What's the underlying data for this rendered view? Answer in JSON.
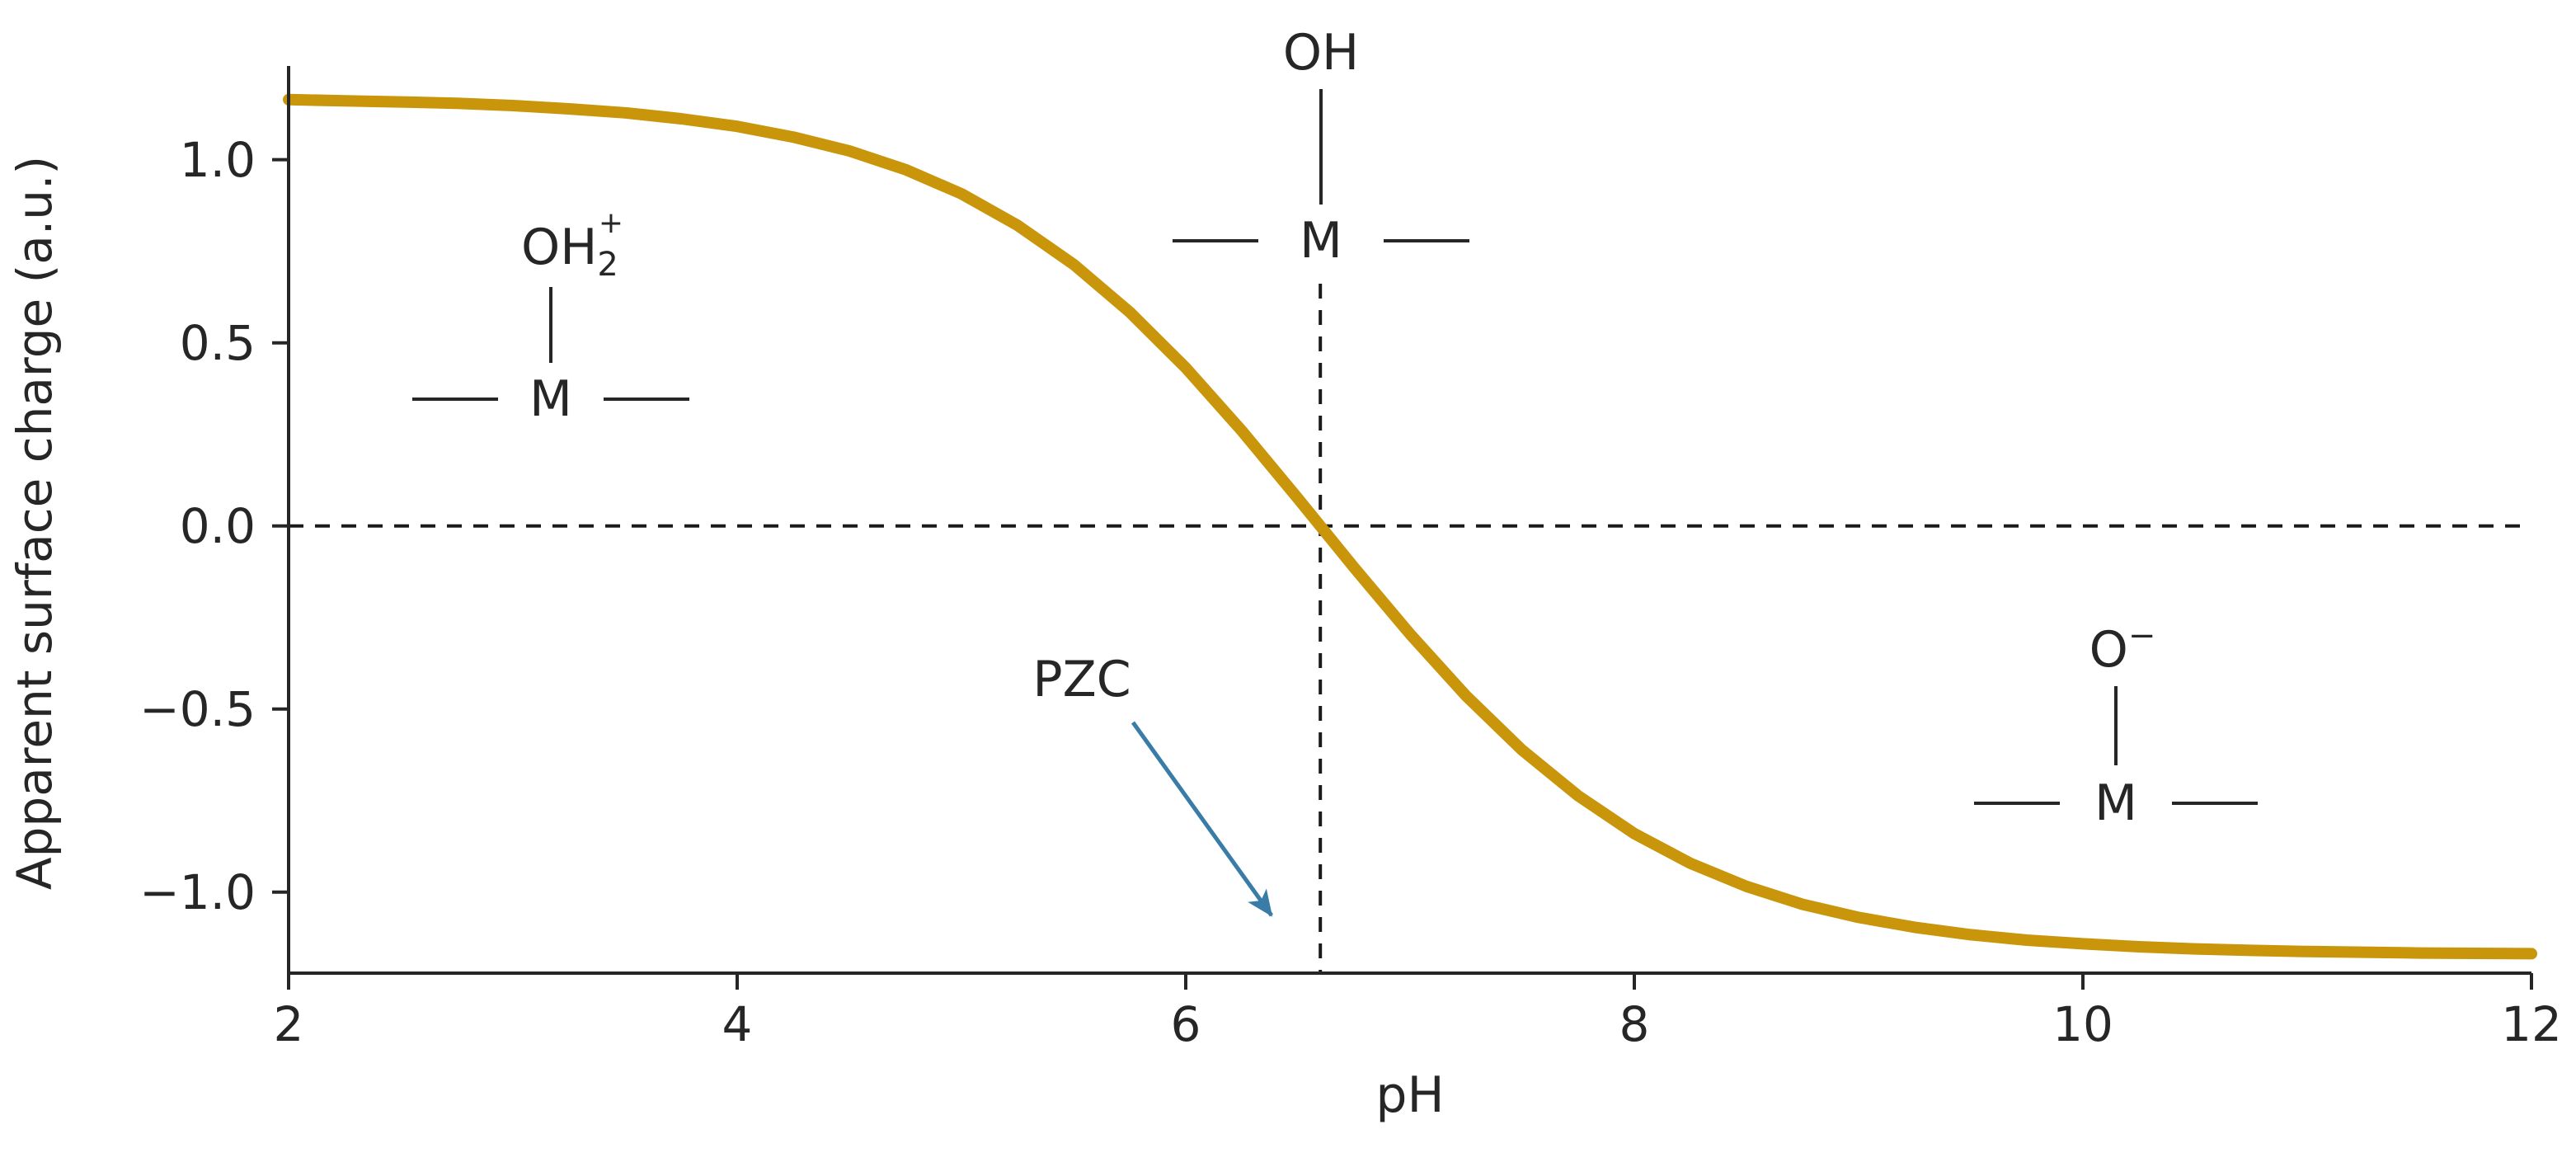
{
  "axes": {
    "xlabel": "pH",
    "ylabel": "Apparent surface charge (a.u.)",
    "xtick_labels": [
      "2",
      "4",
      "6",
      "8",
      "10",
      "12"
    ],
    "xtick_values": [
      2,
      4,
      6,
      8,
      10,
      12
    ],
    "ytick_labels": [
      "1.0",
      "0.5",
      "0.0",
      "−0.5",
      "−1.0"
    ],
    "ytick_values": [
      1.0,
      0.5,
      0.0,
      -0.5,
      -1.0
    ]
  },
  "annotations": {
    "pzc_label": "PZC",
    "oh2_group": {
      "main": "OH",
      "sub": "2",
      "sup": "+",
      "metal": "M"
    },
    "oh_group": {
      "main": "OH",
      "metal": "M"
    },
    "o_group": {
      "main": "O",
      "sup": "−",
      "metal": "M"
    }
  },
  "colors": {
    "curve": "#C8950B",
    "arrow": "#3A7CA8",
    "axis": "#262626",
    "dash": "#1a1a1a"
  },
  "chart_data": {
    "type": "line",
    "title": "",
    "xlabel": "pH",
    "ylabel": "Apparent surface charge (a.u.)",
    "xlim": [
      2,
      12
    ],
    "ylim": [
      -1.221,
      1.256
    ],
    "grid": false,
    "legend": "none",
    "pzc": 6.6,
    "zero_line": 0,
    "x": [
      2,
      2.25,
      2.5,
      2.75,
      3,
      3.25,
      3.5,
      3.75,
      4,
      4.25,
      4.5,
      4.75,
      5,
      5.25,
      5.5,
      5.75,
      6,
      6.25,
      6.5,
      6.75,
      7,
      7.25,
      7.5,
      7.75,
      8,
      8.25,
      8.5,
      8.75,
      9,
      9.25,
      9.5,
      9.75,
      10,
      10.25,
      10.5,
      10.75,
      11,
      11.25,
      11.5,
      11.75,
      12
    ],
    "y": [
      1.164,
      1.161,
      1.158,
      1.154,
      1.148,
      1.139,
      1.128,
      1.112,
      1.091,
      1.062,
      1.024,
      0.973,
      0.907,
      0.821,
      0.714,
      0.584,
      0.432,
      0.26,
      0.075,
      -0.113,
      -0.295,
      -0.464,
      -0.612,
      -0.737,
      -0.84,
      -0.921,
      -0.984,
      -1.033,
      -1.069,
      -1.096,
      -1.116,
      -1.131,
      -1.141,
      -1.149,
      -1.155,
      -1.159,
      -1.162,
      -1.164,
      -1.166,
      -1.167,
      -1.168
    ],
    "series": [
      {
        "name": "apparent surface charge",
        "color": "#C8950B"
      }
    ],
    "reference_lines": [
      {
        "name": "zero-charge-line",
        "orientation": "horizontal",
        "value": 0,
        "style": "dashed"
      },
      {
        "name": "pzc-line",
        "orientation": "vertical",
        "value": 6.6,
        "style": "dashed"
      }
    ]
  }
}
